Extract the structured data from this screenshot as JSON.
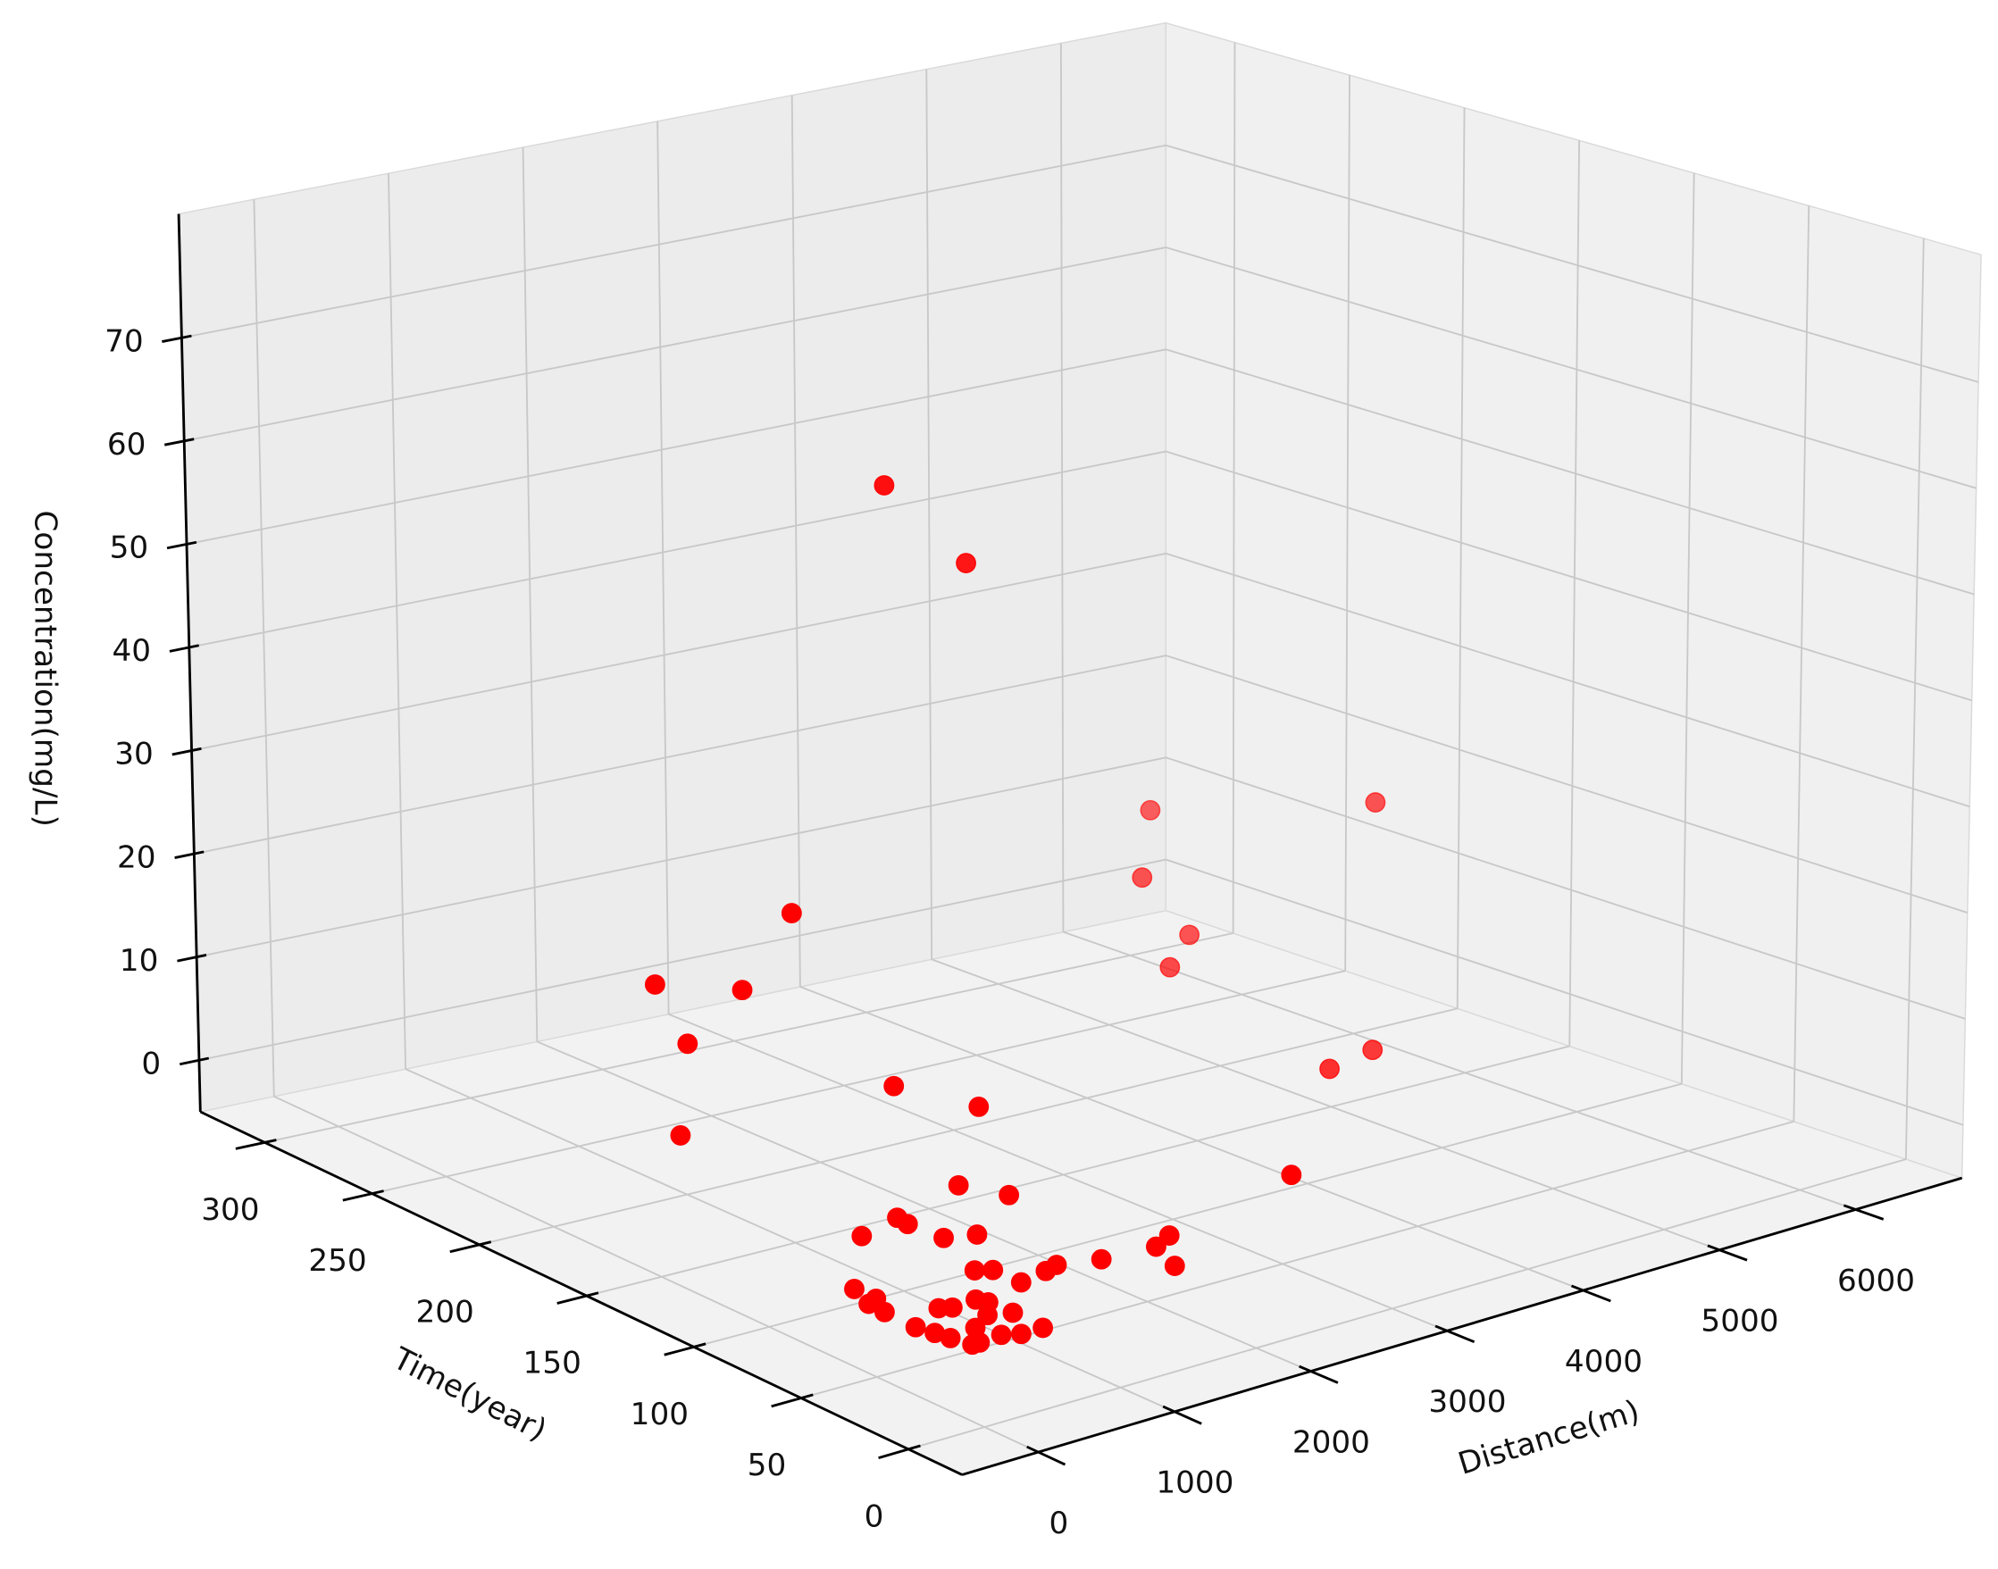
{
  "chart_data": {
    "type": "scatter3d",
    "xlabel": "Distance(m)",
    "ylabel": "Time(year)",
    "zlabel": "Concentration(mg/L)",
    "color": "#ff0000",
    "grid": true,
    "xlim": [
      -560,
      6780
    ],
    "ylim": [
      -25,
      330
    ],
    "zlim": [
      -5,
      82
    ],
    "xticks": [
      0,
      1000,
      2000,
      3000,
      4000,
      5000,
      6000
    ],
    "yticks": [
      0,
      50,
      100,
      150,
      200,
      250,
      300
    ],
    "zticks": [
      0,
      10,
      20,
      30,
      40,
      50,
      60,
      70
    ],
    "x": [
      2552,
      2875,
      4607,
      4380,
      4534,
      4306,
      5033,
      4593,
      4307,
      3175,
      1928,
      1180,
      1783,
      1143,
      680,
      1884,
      2288,
      1682,
      1749,
      1049,
      1030,
      689,
      991,
      1238,
      2096,
      1918,
      1798,
      1482,
      1280,
      1168,
      851,
      938,
      938,
      105,
      106,
      20,
      10,
      297,
      367,
      555,
      583,
      589,
      0,
      30,
      50,
      265,
      138,
      313,
      412,
      571,
      84,
      450
    ],
    "y": [
      203,
      186,
      208,
      198,
      186,
      181,
      133,
      107,
      109,
      57,
      208,
      225,
      222,
      208,
      183,
      159,
      145,
      117,
      98,
      106,
      100,
      100,
      81,
      81,
      46,
      41,
      25,
      39,
      47,
      45,
      58,
      55,
      42,
      67,
      57,
      55,
      47,
      40,
      38,
      39,
      35,
      24,
      32,
      25,
      19,
      21,
      11,
      12,
      9,
      9,
      11,
      27
    ],
    "z": [
      57,
      50,
      20,
      15,
      10,
      8,
      25,
      5,
      4,
      2,
      18,
      12,
      10,
      8,
      3,
      6,
      4,
      1,
      1.5,
      1,
      1,
      1,
      1.5,
      1,
      1,
      1,
      1,
      1.5,
      1,
      1,
      1,
      1,
      1,
      1,
      1,
      1,
      1,
      1,
      1,
      1,
      1,
      1,
      1,
      1,
      1,
      1,
      1,
      1,
      1,
      1,
      1,
      1
    ]
  }
}
